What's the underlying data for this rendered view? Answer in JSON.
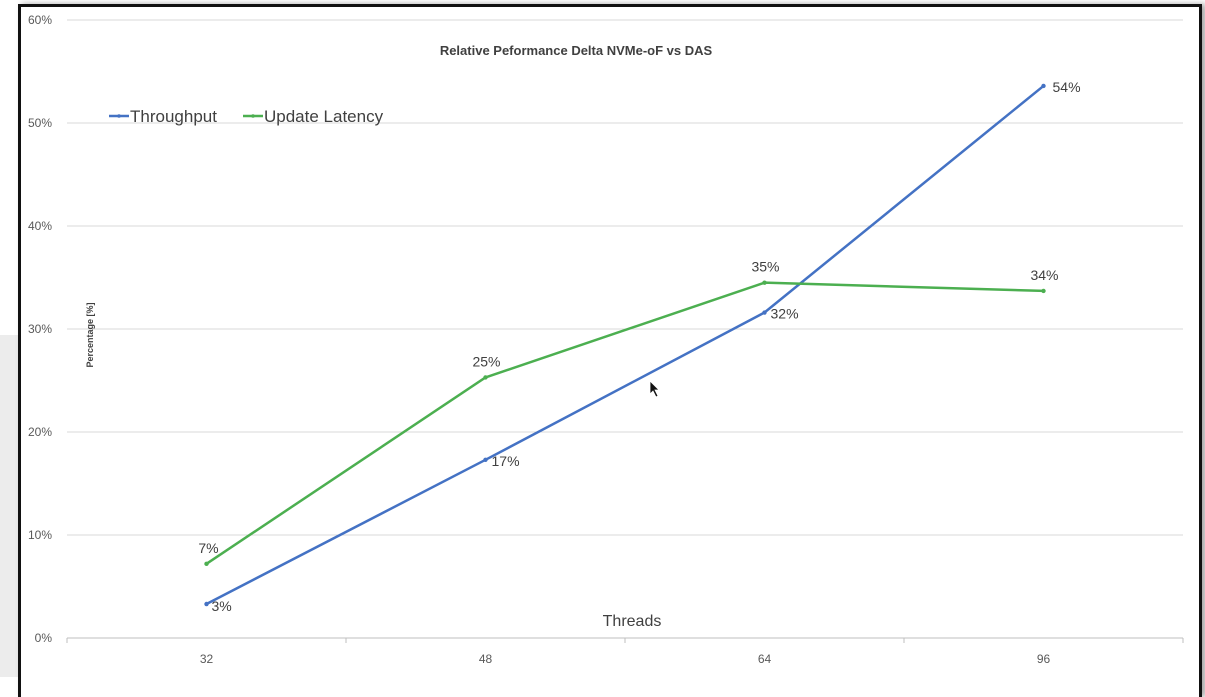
{
  "chart_data": {
    "type": "line",
    "title": "Relative Peformance Delta NVMe-oF vs DAS",
    "xlabel": "Threads",
    "ylabel": "Percentage [%]",
    "categories": [
      "32",
      "48",
      "64",
      "96"
    ],
    "yticks": [
      "0%",
      "10%",
      "20%",
      "30%",
      "40%",
      "50%",
      "60%"
    ],
    "ylim": [
      0,
      60
    ],
    "grid": true,
    "legend_position": "top-left",
    "series": [
      {
        "name": "Throughput",
        "color": "#4472c4",
        "values": [
          3.3,
          17.3,
          31.6,
          53.6
        ],
        "labels": [
          "3%",
          "17%",
          "32%",
          "54%"
        ]
      },
      {
        "name": "Update Latency",
        "color": "#4caf50",
        "values": [
          7.2,
          25.3,
          34.5,
          33.7
        ],
        "labels": [
          "7%",
          "25%",
          "35%",
          "34%"
        ]
      }
    ]
  }
}
